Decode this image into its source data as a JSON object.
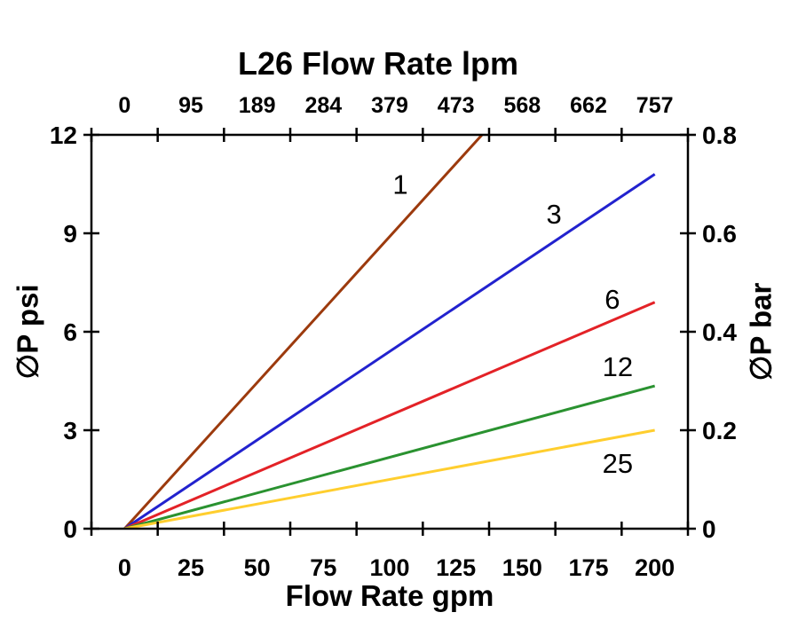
{
  "page": {
    "background": "#ffffff"
  },
  "chart_data": {
    "type": "line",
    "title_top_axis": "L26 Flow Rate lpm",
    "xlabel_bottom": "Flow Rate gpm",
    "ylabel_left": "∅P psi",
    "ylabel_right": "∅P bar",
    "x_bottom_ticks": [
      0,
      25,
      50,
      75,
      100,
      125,
      150,
      175,
      200
    ],
    "x_top_ticks": [
      0,
      95,
      189,
      284,
      379,
      473,
      568,
      662,
      757
    ],
    "y_left_ticks": [
      0,
      3,
      6,
      9,
      12
    ],
    "y_right_ticks": [
      0,
      0.2,
      0.4,
      0.6,
      0.8
    ],
    "x_range_gpm": [
      0,
      200
    ],
    "y_range_psi": [
      0,
      12
    ],
    "y_range_bar": [
      0,
      0.8
    ],
    "labels_between_ticks": true,
    "grid": false,
    "legend_position": "inline-labels",
    "axis_color": "#000000",
    "series": [
      {
        "name": "1",
        "color": "#9C3A0D",
        "points": [
          [
            0,
            0
          ],
          [
            200,
            17.8
          ]
        ],
        "label_anchor_gpm_psi": [
          104,
          10.5
        ]
      },
      {
        "name": "3",
        "color": "#2222CE",
        "points": [
          [
            0,
            0
          ],
          [
            200,
            10.8
          ]
        ],
        "label_anchor_gpm_psi": [
          162,
          9.6
        ]
      },
      {
        "name": "6",
        "color": "#E32227",
        "points": [
          [
            0,
            0
          ],
          [
            200,
            6.9
          ]
        ],
        "label_anchor_gpm_psi": [
          184,
          7.0
        ]
      },
      {
        "name": "12",
        "color": "#2A9230",
        "points": [
          [
            0,
            0
          ],
          [
            200,
            4.35
          ]
        ],
        "label_anchor_gpm_psi": [
          186,
          4.95
        ]
      },
      {
        "name": "25",
        "color": "#FFCE2E",
        "points": [
          [
            0,
            0
          ],
          [
            200,
            3.0
          ]
        ],
        "label_anchor_gpm_psi": [
          186,
          2.0
        ]
      }
    ]
  }
}
